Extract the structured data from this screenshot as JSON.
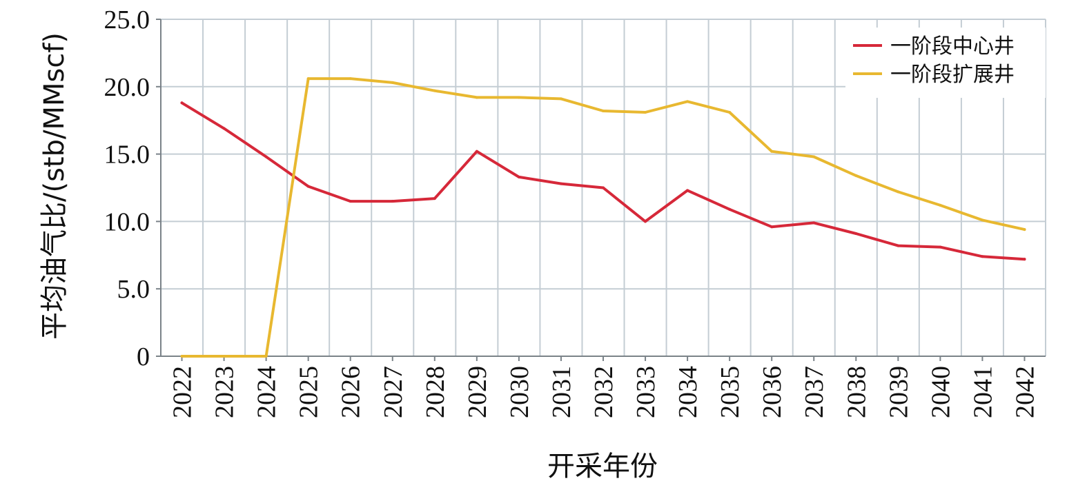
{
  "chart_data": {
    "type": "line",
    "title": "",
    "xlabel": "开采年份",
    "ylabel": "平均油气比/(stb/MMscf)",
    "ylim": [
      0,
      25
    ],
    "yticks": [
      "0",
      "5.0",
      "10.0",
      "15.0",
      "20.0",
      "25.0"
    ],
    "categories": [
      "2022",
      "2023",
      "2024",
      "2025",
      "2026",
      "2027",
      "2028",
      "2029",
      "2030",
      "2031",
      "2032",
      "2033",
      "2034",
      "2035",
      "2036",
      "2037",
      "2038",
      "2039",
      "2040",
      "2041",
      "2042"
    ],
    "grid": true,
    "legend_position": "top-right",
    "series": [
      {
        "name": "一阶段中心井",
        "color": "#d62839",
        "values": [
          18.8,
          16.9,
          14.8,
          12.6,
          11.5,
          11.5,
          11.7,
          15.2,
          13.3,
          12.8,
          12.5,
          10.0,
          12.3,
          10.9,
          9.6,
          9.9,
          9.1,
          8.2,
          8.1,
          7.4,
          7.2
        ]
      },
      {
        "name": "一阶段扩展井",
        "color": "#e8b830",
        "values": [
          0,
          0,
          0,
          20.6,
          20.6,
          20.3,
          19.7,
          19.2,
          19.2,
          19.1,
          18.2,
          18.1,
          18.9,
          18.1,
          15.2,
          14.8,
          13.4,
          12.2,
          11.2,
          10.1,
          9.4
        ]
      }
    ]
  }
}
